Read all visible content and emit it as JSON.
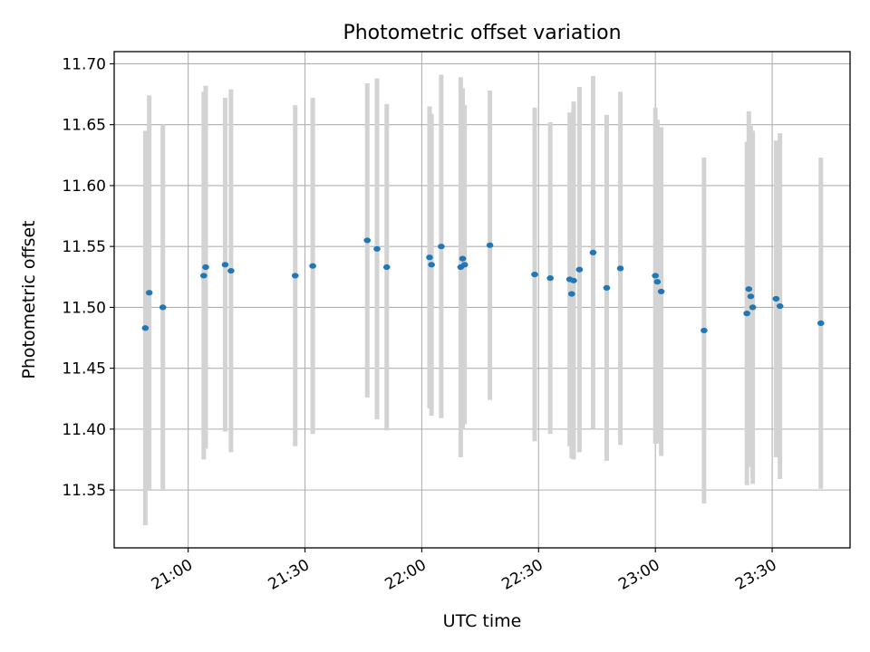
{
  "chart_data": {
    "type": "scatter",
    "title": "Photometric offset variation",
    "xlabel": "UTC time",
    "ylabel": "Photometric offset",
    "x_unit": "UTC time (HH:MM)",
    "xlim": [
      "20:41",
      "23:50"
    ],
    "ylim": [
      11.3025,
      11.71
    ],
    "x_ticks": [
      "21:00",
      "21:30",
      "22:00",
      "22:30",
      "23:00",
      "23:30"
    ],
    "y_ticks": [
      11.35,
      11.4,
      11.45,
      11.5,
      11.55,
      11.6,
      11.65,
      11.7
    ],
    "y_tick_labels": [
      "11.35",
      "11.40",
      "11.45",
      "11.50",
      "11.55",
      "11.60",
      "11.65",
      "11.70"
    ],
    "grid": true,
    "x_tick_label_rotation_deg": 30,
    "errorbar_color": "#d3d3d3",
    "marker_color": "#1f77b4",
    "points": [
      {
        "x": "20:49:00",
        "y": 11.483,
        "yerr": 0.162
      },
      {
        "x": "20:50:00",
        "y": 11.512,
        "yerr": 0.162
      },
      {
        "x": "20:53:30",
        "y": 11.5,
        "yerr": 0.15
      },
      {
        "x": "21:04:00",
        "y": 11.526,
        "yerr": 0.151
      },
      {
        "x": "21:04:30",
        "y": 11.533,
        "yerr": 0.149
      },
      {
        "x": "21:09:30",
        "y": 11.535,
        "yerr": 0.137
      },
      {
        "x": "21:11:00",
        "y": 11.53,
        "yerr": 0.149
      },
      {
        "x": "21:27:30",
        "y": 11.526,
        "yerr": 0.14
      },
      {
        "x": "21:32:00",
        "y": 11.534,
        "yerr": 0.138
      },
      {
        "x": "21:46:00",
        "y": 11.555,
        "yerr": 0.129
      },
      {
        "x": "21:48:30",
        "y": 11.548,
        "yerr": 0.14
      },
      {
        "x": "21:51:00",
        "y": 11.533,
        "yerr": 0.134
      },
      {
        "x": "22:02:00",
        "y": 11.541,
        "yerr": 0.124
      },
      {
        "x": "22:02:30",
        "y": 11.535,
        "yerr": 0.124
      },
      {
        "x": "22:05:00",
        "y": 11.55,
        "yerr": 0.141
      },
      {
        "x": "22:10:00",
        "y": 11.533,
        "yerr": 0.156
      },
      {
        "x": "22:10:30",
        "y": 11.54,
        "yerr": 0.14
      },
      {
        "x": "22:11:00",
        "y": 11.535,
        "yerr": 0.131
      },
      {
        "x": "22:17:30",
        "y": 11.551,
        "yerr": 0.127
      },
      {
        "x": "22:29:00",
        "y": 11.527,
        "yerr": 0.137
      },
      {
        "x": "22:33:00",
        "y": 11.524,
        "yerr": 0.128
      },
      {
        "x": "22:38:00",
        "y": 11.523,
        "yerr": 0.137
      },
      {
        "x": "22:38:30",
        "y": 11.511,
        "yerr": 0.135
      },
      {
        "x": "22:39:00",
        "y": 11.522,
        "yerr": 0.147
      },
      {
        "x": "22:40:30",
        "y": 11.531,
        "yerr": 0.15
      },
      {
        "x": "22:44:00",
        "y": 11.545,
        "yerr": 0.145
      },
      {
        "x": "22:47:30",
        "y": 11.516,
        "yerr": 0.142
      },
      {
        "x": "22:51:00",
        "y": 11.532,
        "yerr": 0.145
      },
      {
        "x": "23:00:00",
        "y": 11.526,
        "yerr": 0.138
      },
      {
        "x": "23:00:30",
        "y": 11.521,
        "yerr": 0.133
      },
      {
        "x": "23:01:30",
        "y": 11.513,
        "yerr": 0.135
      },
      {
        "x": "23:12:30",
        "y": 11.481,
        "yerr": 0.142
      },
      {
        "x": "23:23:30",
        "y": 11.495,
        "yerr": 0.141
      },
      {
        "x": "23:24:00",
        "y": 11.515,
        "yerr": 0.146
      },
      {
        "x": "23:24:30",
        "y": 11.509,
        "yerr": 0.14
      },
      {
        "x": "23:25:00",
        "y": 11.5,
        "yerr": 0.145
      },
      {
        "x": "23:31:00",
        "y": 11.507,
        "yerr": 0.13
      },
      {
        "x": "23:32:00",
        "y": 11.501,
        "yerr": 0.142
      },
      {
        "x": "23:42:30",
        "y": 11.487,
        "yerr": 0.136
      }
    ]
  }
}
